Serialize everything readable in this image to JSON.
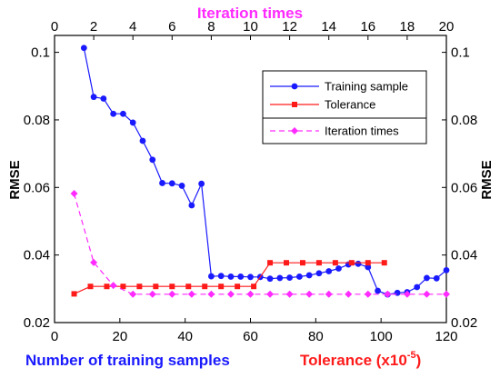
{
  "chart_data": {
    "type": "line",
    "top_xlabel": "Iteration times",
    "xlabel_main": "Number of training samples",
    "xlabel_tolerance_prefix": "Tolerance (x10",
    "xlabel_tolerance_exp": "-5",
    "xlabel_tolerance_suffix": ")",
    "ylabel_left": "RMSE",
    "ylabel_right": "RMSE",
    "xlim": [
      0,
      120
    ],
    "top_xlim": [
      0,
      20
    ],
    "ylim": [
      0.02,
      0.105
    ],
    "x_ticks": [
      0,
      20,
      40,
      60,
      80,
      100,
      120
    ],
    "top_x_ticks": [
      0,
      2,
      4,
      6,
      8,
      10,
      12,
      14,
      16,
      18,
      20
    ],
    "y_ticks": [
      0.02,
      0.04,
      0.06,
      0.08,
      0.1
    ],
    "y_tick_labels": [
      "0.02",
      "0.04",
      "0.06",
      "0.08",
      "0.1"
    ],
    "colors": {
      "training": "#1a1aff",
      "tolerance": "#ff1a1a",
      "iteration": "#ff2aff",
      "main_label": "#1a1aff",
      "tolerance_label": "#ff1a1a",
      "top_label": "#ff2aff"
    },
    "legend": {
      "placement": "top-right",
      "entries": [
        "Training sample",
        "Tolerance",
        "Iteration times"
      ]
    },
    "series": [
      {
        "name": "Training sample",
        "axis": "bottom",
        "x": [
          9,
          12,
          15,
          18,
          21,
          24,
          27,
          30,
          33,
          36,
          39,
          42,
          45,
          48,
          51,
          54,
          57,
          60,
          63,
          66,
          69,
          72,
          75,
          78,
          81,
          84,
          87,
          90,
          93,
          96,
          99,
          102,
          105,
          108,
          111,
          114,
          117,
          120
        ],
        "y": [
          0.1013,
          0.0868,
          0.0863,
          0.0818,
          0.0818,
          0.0792,
          0.0738,
          0.0682,
          0.0613,
          0.0612,
          0.0605,
          0.0547,
          0.0611,
          0.0337,
          0.0338,
          0.0336,
          0.0336,
          0.0335,
          0.0335,
          0.033,
          0.0332,
          0.0333,
          0.0336,
          0.034,
          0.0346,
          0.0352,
          0.036,
          0.0372,
          0.0374,
          0.0364,
          0.0294,
          0.0283,
          0.0288,
          0.029,
          0.0305,
          0.0332,
          0.0331,
          0.0355
        ]
      },
      {
        "name": "Tolerance",
        "axis": "bottom",
        "x": [
          6,
          11,
          16,
          21,
          26,
          31,
          36,
          41,
          46,
          51,
          56,
          61,
          66,
          71,
          76,
          81,
          86,
          91,
          96,
          101
        ],
        "y": [
          0.0285,
          0.0307,
          0.0307,
          0.0307,
          0.0307,
          0.0307,
          0.0307,
          0.0307,
          0.0307,
          0.0307,
          0.0307,
          0.0307,
          0.0377,
          0.0377,
          0.0377,
          0.0377,
          0.0377,
          0.0377,
          0.0377,
          0.0377
        ]
      },
      {
        "name": "Iteration times",
        "axis": "top",
        "x": [
          1,
          2,
          3,
          4,
          5,
          6,
          7,
          8,
          9,
          10,
          11,
          12,
          13,
          14,
          15,
          16,
          17,
          18,
          19,
          20
        ],
        "y": [
          0.0582,
          0.0378,
          0.031,
          0.0284,
          0.0284,
          0.0284,
          0.0284,
          0.0284,
          0.0284,
          0.0284,
          0.0284,
          0.0284,
          0.0284,
          0.0284,
          0.0284,
          0.0284,
          0.0284,
          0.0284,
          0.0284,
          0.0284
        ]
      }
    ]
  }
}
